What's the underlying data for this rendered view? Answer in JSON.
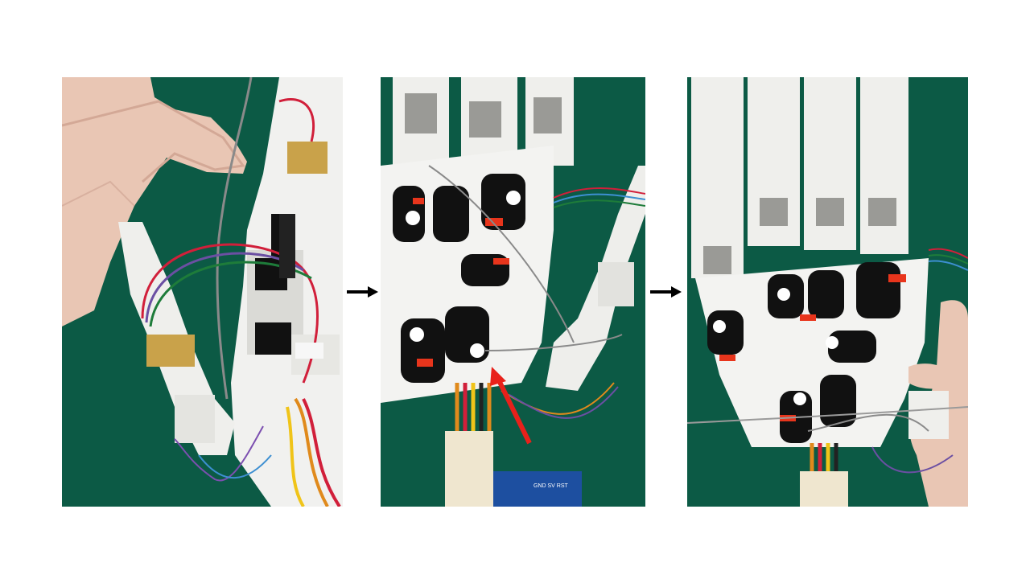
{
  "slide": {
    "background": "#ffffff",
    "panels": [
      {
        "id": "left",
        "description_icon": "photo"
      },
      {
        "id": "middle",
        "description_icon": "photo"
      },
      {
        "id": "right",
        "description_icon": "photo"
      }
    ],
    "annotation_color": "#e8211b",
    "arrow_color": "#000000",
    "board_text": [
      "GND",
      "SV",
      "RST"
    ]
  }
}
